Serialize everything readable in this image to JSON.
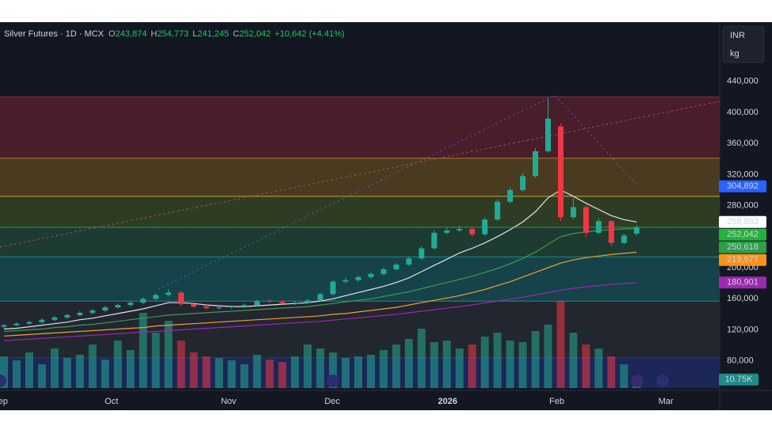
{
  "chart_data": {
    "type": "candlestick",
    "header": {
      "title": "Silver Futures · 1D · MCX",
      "items": [
        {
          "key": "O",
          "text": "243,874"
        },
        {
          "key": "H",
          "text": "254,773"
        },
        {
          "key": "L",
          "text": "241,245"
        },
        {
          "key": "C",
          "text": "252,042"
        }
      ],
      "change": "+10,642 (+4.41%)"
    },
    "currency": "INR",
    "unit": "kg",
    "xlim": [
      -0.3125,
      56.5625
    ],
    "xticks": [
      {
        "value": -0.3,
        "label": "Sep"
      },
      {
        "value": 8.5,
        "label": "Oct"
      },
      {
        "value": 17.75,
        "label": "Nov"
      },
      {
        "value": 25.94,
        "label": "Dec"
      },
      {
        "value": 35.06,
        "label": "2026"
      },
      {
        "value": 43.69,
        "label": "Feb"
      },
      {
        "value": 52.31,
        "label": "Mar"
      }
    ],
    "ylim": [
      43000,
      455000
    ],
    "yticks": [
      {
        "value": 440000,
        "label": "440,000"
      },
      {
        "value": 400000,
        "label": "400,000"
      },
      {
        "value": 360000,
        "label": "360,000"
      },
      {
        "value": 320000,
        "label": "320,000"
      },
      {
        "value": 280000,
        "label": "280,000"
      },
      {
        "value": 200000,
        "label": "200,000"
      },
      {
        "value": 160000,
        "label": "160,000"
      },
      {
        "value": 120000,
        "label": "120,000"
      },
      {
        "value": 80000,
        "label": "80,000"
      }
    ],
    "up_color": "#22ab94",
    "down_color": "#f23645",
    "open": [
      124000,
      126000,
      128000,
      130000,
      133000,
      136000,
      139000,
      142000,
      145000,
      149000,
      152000,
      155000,
      160000,
      165000,
      168000,
      153000,
      150000,
      148000,
      149000,
      150000,
      152000,
      157000,
      156000,
      154000,
      155000,
      158000,
      166000,
      182000,
      184000,
      188000,
      192000,
      198000,
      204000,
      212000,
      225000,
      245000,
      248000,
      250000,
      243000,
      262000,
      285000,
      300000,
      318000,
      350000,
      382000,
      265000,
      278000,
      245000,
      260000,
      232000,
      243874
    ],
    "high": [
      128000,
      130000,
      132000,
      135000,
      138000,
      141000,
      144000,
      147000,
      151000,
      154000,
      157000,
      162000,
      167000,
      172000,
      170000,
      155000,
      152000,
      151000,
      152000,
      154000,
      159000,
      159000,
      158000,
      157000,
      160000,
      168000,
      184000,
      187000,
      190000,
      194000,
      200000,
      206000,
      214000,
      228000,
      248000,
      252000,
      254000,
      252000,
      265000,
      288000,
      304000,
      322000,
      354000,
      418000,
      386000,
      290000,
      280000,
      264000,
      262000,
      244000,
      254773
    ],
    "low": [
      122000,
      124000,
      126000,
      128000,
      131000,
      134000,
      137000,
      140000,
      143000,
      147000,
      150000,
      153000,
      158000,
      163000,
      151000,
      148000,
      146000,
      146000,
      147000,
      148000,
      150000,
      155000,
      152000,
      152000,
      153000,
      156000,
      164000,
      180000,
      182000,
      186000,
      190000,
      196000,
      202000,
      210000,
      223000,
      243000,
      246000,
      240000,
      241000,
      260000,
      283000,
      298000,
      316000,
      348000,
      260000,
      262000,
      240000,
      243000,
      228000,
      230000,
      241245
    ],
    "close": [
      126000,
      128000,
      130000,
      133000,
      136000,
      139000,
      142000,
      145000,
      149000,
      152000,
      155000,
      160000,
      165000,
      168000,
      153000,
      150000,
      148000,
      149000,
      150000,
      152000,
      157000,
      156000,
      154000,
      155000,
      158000,
      166000,
      182000,
      184000,
      188000,
      192000,
      198000,
      204000,
      212000,
      225000,
      245000,
      248000,
      250000,
      243000,
      262000,
      285000,
      300000,
      318000,
      350000,
      392000,
      265000,
      278000,
      245000,
      260000,
      232000,
      241400,
      252042
    ],
    "volume": [
      40000,
      35000,
      45000,
      30000,
      50000,
      38000,
      42000,
      55000,
      36000,
      60000,
      48000,
      95000,
      70000,
      85000,
      60000,
      45000,
      40000,
      38000,
      35000,
      30000,
      42000,
      36000,
      33000,
      40000,
      55000,
      50000,
      45000,
      38000,
      40000,
      42000,
      48000,
      55000,
      62000,
      75000,
      58000,
      60000,
      50000,
      55000,
      65000,
      70000,
      60000,
      58000,
      72000,
      80000,
      110000,
      70000,
      55000,
      50000,
      40000,
      30000,
      10750
    ],
    "volume_lim": [
      0,
      140000
    ],
    "volume_label": "10.75K",
    "volume_label_color": "#1f8a87",
    "mas": [
      {
        "color": "#e0e3eb",
        "values": [
          121000,
          122000,
          124000,
          126000,
          128000,
          130000,
          133000,
          135000,
          138000,
          141000,
          144000,
          147000,
          151000,
          155000,
          155000,
          154000,
          152000,
          151000,
          150000,
          150000,
          151000,
          152000,
          153000,
          154000,
          155000,
          157000,
          160000,
          164000,
          168000,
          172000,
          176000,
          181000,
          187000,
          195000,
          203000,
          211000,
          219000,
          225000,
          232000,
          240000,
          249000,
          259000,
          272000,
          290000,
          300000,
          292000,
          283000,
          275000,
          267000,
          262000,
          258883
        ]
      },
      {
        "color": "#3f9b4f",
        "values": [
          118000,
          119000,
          120000,
          121000,
          123000,
          124000,
          126000,
          127000,
          129000,
          131000,
          133000,
          135000,
          137000,
          139000,
          140000,
          141000,
          142000,
          143000,
          144000,
          145000,
          146000,
          147000,
          148000,
          149000,
          150000,
          152000,
          154000,
          156000,
          158000,
          160000,
          163000,
          166000,
          169000,
          173000,
          177000,
          181000,
          185000,
          189000,
          194000,
          199000,
          205000,
          212000,
          220000,
          230000,
          240000,
          244000,
          246000,
          248000,
          249000,
          250000,
          250618
        ]
      },
      {
        "color": "#f0a030",
        "values": [
          112000,
          113000,
          114000,
          115000,
          116000,
          117000,
          118000,
          119000,
          120000,
          121000,
          122000,
          123000,
          125000,
          126000,
          127000,
          128000,
          129000,
          130000,
          131000,
          132000,
          133000,
          134000,
          135000,
          136000,
          137000,
          138000,
          140000,
          141000,
          143000,
          145000,
          147000,
          149000,
          152000,
          155000,
          158000,
          161000,
          164000,
          168000,
          172000,
          177000,
          182000,
          188000,
          194000,
          200000,
          206000,
          210000,
          213000,
          215000,
          217000,
          218500,
          219977
        ]
      },
      {
        "color": "#9c27b0",
        "values": [
          106000,
          107000,
          108000,
          109000,
          110000,
          111000,
          112000,
          113000,
          114000,
          115000,
          116000,
          117000,
          118000,
          119000,
          120000,
          121000,
          122000,
          123000,
          124000,
          125000,
          126000,
          127000,
          128000,
          129000,
          130000,
          131000,
          132500,
          134000,
          135500,
          137000,
          138500,
          140000,
          142000,
          144000,
          146000,
          148000,
          150000,
          152000,
          154500,
          157000,
          159500,
          162000,
          165000,
          168000,
          171000,
          173500,
          175500,
          177000,
          178500,
          179800,
          180901
        ]
      }
    ],
    "bands": [
      {
        "from": 420000,
        "to": 341000,
        "color": "#4a1d2b",
        "edge_color": "#8a2c3a"
      },
      {
        "from": 341000,
        "to": 292000,
        "color": "#4a3a1f",
        "edge_color": "#b07a2a"
      },
      {
        "from": 292000,
        "to": 252000,
        "color": "#2f3c24",
        "edge_color": "#c8a030"
      },
      {
        "from": 252000,
        "to": 214000,
        "color": "#1d3b31",
        "edge_color": "#2e8b57"
      },
      {
        "from": 214000,
        "to": 157000,
        "color": "#154349",
        "edge_color": "#1f8a8a"
      },
      {
        "from": 157000,
        "to": 84000,
        "color": "#22262f",
        "edge_color": "#1f8a8a"
      },
      {
        "from": 84000,
        "to": 45000,
        "color": "#1c2657",
        "edge_color": "#2a3a80"
      }
    ],
    "price_labels": [
      {
        "value": 304892,
        "label": "304,892",
        "color": "#2962ff",
        "text_color": "#ffffff"
      },
      {
        "value": 258883,
        "label": "258,883",
        "color": "#ffffff",
        "text_color": "#131722"
      },
      {
        "value": 252042,
        "label": "252,042",
        "color": "#22b33a",
        "text_color": "#ffffff"
      },
      {
        "value": 250618,
        "label": "250,618",
        "color": "#2e9e4a",
        "text_color": "#ffffff"
      },
      {
        "value": 219977,
        "label": "219,977",
        "color": "#f7931a",
        "text_color": "#131722"
      },
      {
        "value": 180901,
        "label": "180,901",
        "color": "#9c27b0",
        "text_color": "#ffffff"
      }
    ]
  }
}
